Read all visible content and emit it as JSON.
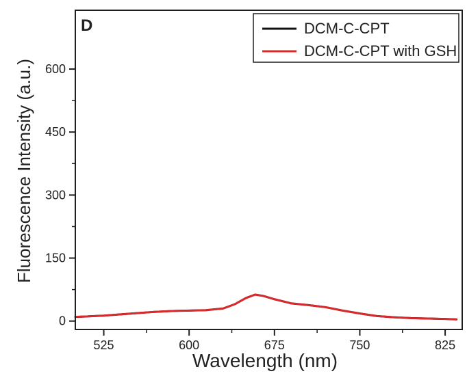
{
  "chart_data": {
    "type": "line",
    "panel_label": "D",
    "xlabel": "Wavelength (nm)",
    "ylabel": "Fluorescence Intensity (a.u.)",
    "xlim": [
      500,
      840
    ],
    "ylim": [
      -20,
      740
    ],
    "xticks": [
      525,
      600,
      675,
      750,
      825
    ],
    "yticks": [
      0,
      150,
      300,
      450,
      600
    ],
    "legend": {
      "position": "top-right",
      "entries": [
        {
          "label": "DCM-C-CPT",
          "color": "#111111"
        },
        {
          "label": "DCM-C-CPT with GSH",
          "color": "#e0282b"
        }
      ]
    },
    "series": [
      {
        "name": "DCM-C-CPT",
        "color": "#111111",
        "x": [
          500,
          510,
          525,
          540,
          555,
          570,
          585,
          600,
          615,
          630,
          640,
          650,
          658,
          665,
          675,
          690,
          705,
          720,
          735,
          750,
          765,
          780,
          795,
          810,
          825,
          835
        ],
        "y": [
          10,
          11,
          13,
          16,
          19,
          22,
          24,
          25,
          26,
          30,
          40,
          55,
          63,
          60,
          52,
          42,
          38,
          33,
          25,
          18,
          12,
          9,
          7,
          6,
          5,
          4
        ]
      },
      {
        "name": "DCM-C-CPT with GSH",
        "color": "#e0282b",
        "x": [
          500,
          510,
          525,
          540,
          555,
          570,
          585,
          600,
          615,
          630,
          640,
          650,
          658,
          665,
          675,
          690,
          705,
          720,
          735,
          750,
          765,
          780,
          795,
          810,
          825,
          835
        ],
        "y": [
          10,
          11,
          13,
          16,
          19,
          22,
          24,
          25,
          26,
          30,
          40,
          55,
          63,
          60,
          52,
          42,
          38,
          33,
          25,
          18,
          12,
          9,
          7,
          6,
          5,
          4
        ]
      }
    ]
  }
}
